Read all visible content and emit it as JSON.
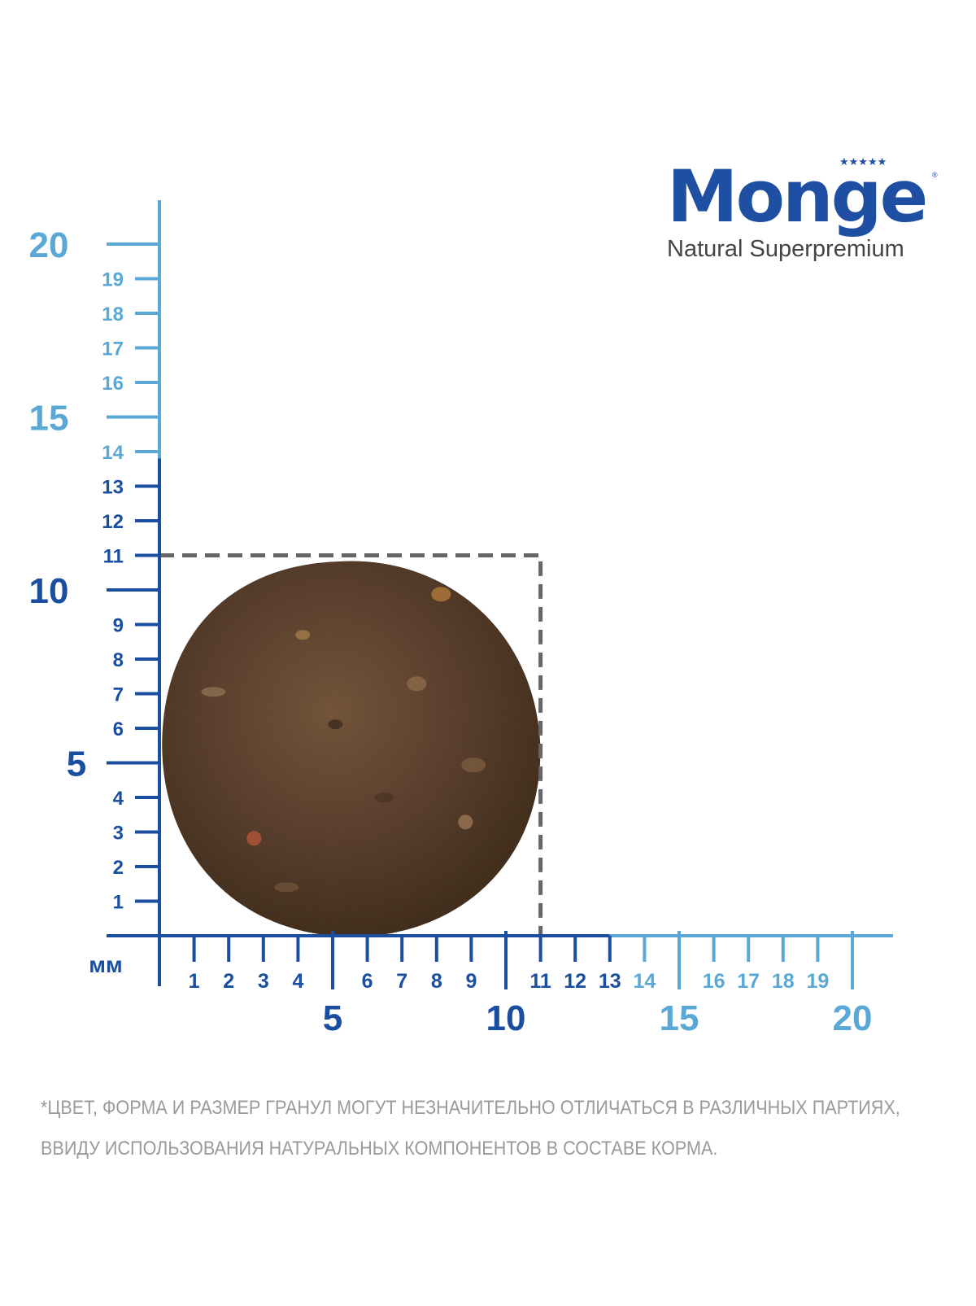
{
  "brand": {
    "name": "Monge",
    "stars": "★★★★★",
    "registered": "®",
    "tagline": "Natural Superpremium"
  },
  "ruler": {
    "unit": "мм",
    "y_major_labels": [
      5,
      10,
      15,
      20
    ],
    "y_minor_labels": [
      1,
      2,
      3,
      4,
      6,
      7,
      8,
      9,
      11,
      12,
      13,
      14,
      16,
      17,
      18,
      19
    ],
    "x_major_labels": [
      5,
      10,
      15,
      20
    ],
    "x_minor_labels": [
      1,
      2,
      3,
      4,
      6,
      7,
      8,
      9,
      11,
      12,
      13,
      14,
      16,
      17,
      18,
      19
    ],
    "dark_until_mm": 13,
    "colors": {
      "dark": "#1a4ea1",
      "light": "#5aa8d6",
      "dashed_box": "#666666"
    }
  },
  "kibble": {
    "width_mm": 11,
    "height_mm": 11,
    "color": "#6b4a32"
  },
  "disclaimer": {
    "line1": "*ЦВЕТ, ФОРМА И РАЗМЕР ГРАНУЛ МОГУТ НЕЗНАЧИТЕЛЬНО ОТЛИЧАТЬСЯ В РАЗЛИЧНЫХ ПАРТИЯХ,",
    "line2": "ВВИДУ ИСПОЛЬЗОВАНИЯ НАТУРАЛЬНЫХ КОМПОНЕНТОВ В СОСТАВЕ КОРМА."
  }
}
